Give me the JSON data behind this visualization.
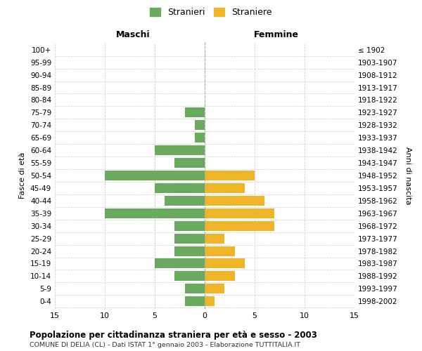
{
  "age_groups": [
    "0-4",
    "5-9",
    "10-14",
    "15-19",
    "20-24",
    "25-29",
    "30-34",
    "35-39",
    "40-44",
    "45-49",
    "50-54",
    "55-59",
    "60-64",
    "65-69",
    "70-74",
    "75-79",
    "80-84",
    "85-89",
    "90-94",
    "95-99",
    "100+"
  ],
  "birth_years": [
    "1998-2002",
    "1993-1997",
    "1988-1992",
    "1983-1987",
    "1978-1982",
    "1973-1977",
    "1968-1972",
    "1963-1967",
    "1958-1962",
    "1953-1957",
    "1948-1952",
    "1943-1947",
    "1938-1942",
    "1933-1937",
    "1928-1932",
    "1923-1927",
    "1918-1922",
    "1913-1917",
    "1908-1912",
    "1903-1907",
    "≤ 1902"
  ],
  "maschi": [
    2,
    2,
    3,
    5,
    3,
    3,
    3,
    10,
    4,
    5,
    10,
    3,
    5,
    1,
    1,
    2,
    0,
    0,
    0,
    0,
    0
  ],
  "femmine": [
    1,
    2,
    3,
    4,
    3,
    2,
    7,
    7,
    6,
    4,
    5,
    0,
    0,
    0,
    0,
    0,
    0,
    0,
    0,
    0,
    0
  ],
  "color_maschi": "#6aaa5e",
  "color_femmine": "#f0b429",
  "title": "Popolazione per cittadinanza straniera per età e sesso - 2003",
  "subtitle": "COMUNE DI DELIA (CL) - Dati ISTAT 1° gennaio 2003 - Elaborazione TUTTITALIA.IT",
  "xlabel_left": "Maschi",
  "xlabel_right": "Femmine",
  "ylabel": "Fasce di età",
  "ylabel_right": "Anni di nascita",
  "legend_maschi": "Stranieri",
  "legend_femmine": "Straniere",
  "xlim": 15,
  "background_color": "#ffffff",
  "grid_color": "#d0d0d0"
}
